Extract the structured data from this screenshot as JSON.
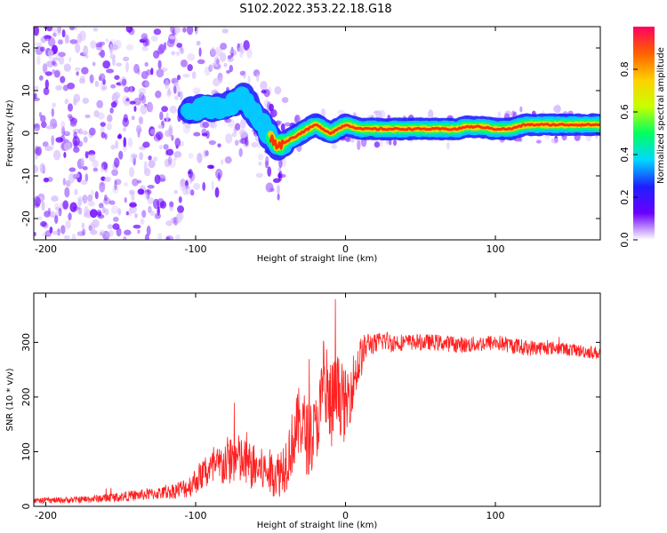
{
  "title": "S102.2022.353.22.18.G18",
  "chart_data": [
    {
      "type": "heatmap",
      "xlabel": "Height of straight line (km)",
      "ylabel": "Frequency (Hz)",
      "xlim": [
        -208,
        170
      ],
      "ylim": [
        -25,
        25
      ],
      "x_ticks": [
        -200,
        -100,
        0,
        100
      ],
      "x_tick_labels": [
        "-200",
        "-100",
        "0",
        "100"
      ],
      "y_ticks": [
        20,
        10,
        0,
        -10,
        -20
      ],
      "y_tick_labels": [
        "20",
        "10",
        "0",
        "-10",
        "-20"
      ],
      "colorbar": {
        "label": "Normalized spectral amplitude",
        "range": [
          0,
          1
        ],
        "ticks": [
          0,
          0.2,
          0.4,
          0.6,
          0.8
        ],
        "tick_labels": [
          "0.0",
          "0.2",
          "0.4",
          "0.6",
          "0.8"
        ],
        "colormap": [
          "#ffffff",
          "#6a00ff",
          "#1f1fff",
          "#00d8ff",
          "#00ff60",
          "#c8ff00",
          "#ffd000",
          "#ff6000",
          "#ff0060"
        ]
      },
      "ridge": {
        "x": [
          -105,
          -95,
          -85,
          -75,
          -68,
          -62,
          -55,
          -50,
          -45,
          -40,
          -35,
          -30,
          -25,
          -20,
          -15,
          -10,
          -5,
          0,
          5,
          10,
          20,
          40,
          60,
          75,
          80,
          90,
          100,
          110,
          120,
          140,
          170
        ],
        "freq": [
          5,
          6,
          6,
          7,
          9,
          5,
          2,
          -1,
          -3,
          -2,
          -1,
          0,
          1,
          2,
          1,
          0,
          1,
          2,
          1.5,
          1,
          1,
          1,
          1,
          1,
          1.5,
          1.5,
          1,
          1,
          2,
          2,
          2
        ]
      }
    },
    {
      "type": "line",
      "xlabel": "Height of straight line (km)",
      "ylabel": "SNR (10 * v/v)",
      "xlim": [
        -208,
        170
      ],
      "ylim": [
        0,
        390
      ],
      "x_ticks": [
        -200,
        -100,
        0,
        100
      ],
      "x_tick_labels": [
        "-200",
        "-100",
        "0",
        "100"
      ],
      "y_ticks": [
        0,
        100,
        200,
        300
      ],
      "y_tick_labels": [
        "0",
        "100",
        "200",
        "300"
      ],
      "color": "#ff2020",
      "series": [
        {
          "x": [
            -208,
            -180,
            -160,
            -140,
            -120,
            -105,
            -95,
            -85,
            -75,
            -65,
            -55,
            -45,
            -40,
            -35,
            -30,
            -25,
            -20,
            -15,
            -10,
            -5,
            0,
            5,
            10,
            15,
            20,
            25,
            30,
            40,
            60,
            80,
            100,
            120,
            140,
            170
          ],
          "values": [
            10,
            12,
            15,
            20,
            25,
            35,
            60,
            70,
            90,
            75,
            65,
            60,
            80,
            120,
            160,
            120,
            140,
            200,
            180,
            210,
            180,
            230,
            270,
            300,
            295,
            305,
            300,
            300,
            300,
            295,
            300,
            290,
            290,
            280
          ],
          "noise": [
            5,
            6,
            8,
            10,
            12,
            20,
            30,
            40,
            50,
            45,
            40,
            45,
            55,
            60,
            70,
            70,
            60,
            80,
            90,
            70,
            70,
            50,
            40,
            20,
            20,
            20,
            18,
            15,
            15,
            15,
            15,
            15,
            12,
            12
          ]
        }
      ]
    }
  ]
}
